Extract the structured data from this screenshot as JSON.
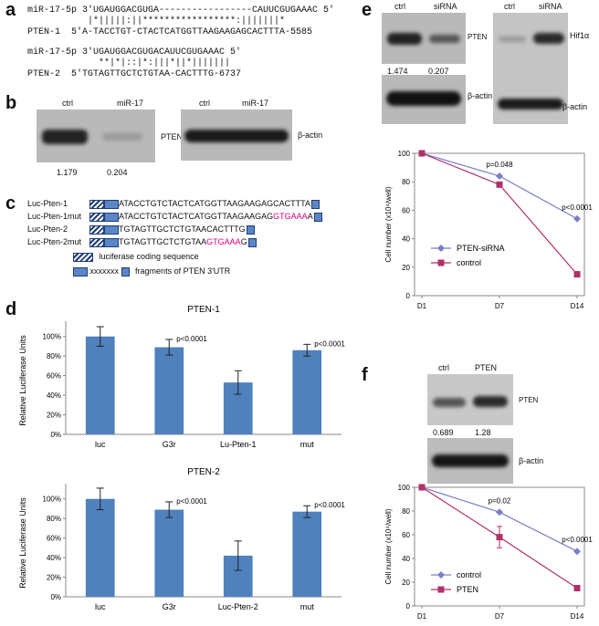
{
  "panels": {
    "a": "a",
    "b": "b",
    "c": "c",
    "d": "d",
    "e": "e",
    "f": "f"
  },
  "panel_a": {
    "lines": [
      "miR-17-5p 3'UGAUGGACGUGA-----------------CAUUCGUGAAAC 5'",
      "           |*|||||:||*****************:|||||||*",
      "PTEN-1  5'A-TACCTGT-CTACTCATGGTTAAGAAGAGCACTTTA-5585",
      "",
      "miR-17-5p 3'UGAUGGACGUGACAUUCGUGAAAC 5'",
      "             **|*|::|*:|||*||*|||||||",
      "PTEN-2  5'TGTAGTTGCTCTGTAA-CACTTTG-6737"
    ]
  },
  "panel_b": {
    "left_labels": [
      "ctrl",
      "miR-17"
    ],
    "protein": "PTEN",
    "right_labels": [
      "ctrl",
      "miR-17"
    ],
    "control": "β-actin",
    "quant": [
      "1.179",
      "0.204"
    ]
  },
  "panel_c": {
    "constructs": [
      {
        "name": "Luc-Pten-1",
        "seq": "ATACCTGTCTACTCATGGTTAAGAAGAGCACTTTA",
        "mut": "",
        "tail": ""
      },
      {
        "name": "Luc-Pten-1mut",
        "seq": "ATACCTGTCTACTCATGGTTAAGAAGAG",
        "mut": "GTGAAA",
        "tail": "A"
      },
      {
        "name": "Luc-Pten-2",
        "seq": "TGTAGTTGCTCTGTAACACTTTG",
        "mut": "",
        "tail": ""
      },
      {
        "name": "Luc-Pten-2mut",
        "seq": "TGTAGTTGCTCTGTAA",
        "mut": "GTGAAA",
        "tail": "G"
      }
    ],
    "legend": [
      {
        "marker": "",
        "label": "luciferase coding sequence"
      },
      {
        "marker": "xxxxxxx",
        "label": "fragments of PTEN 3'UTR"
      }
    ]
  },
  "panel_d": {
    "ylabel": "Relative Luciferase Units",
    "yticks": [
      "0%",
      "20%",
      "40%",
      "60%",
      "80%",
      "100%"
    ],
    "charts": [
      {
        "title": "PTEN-1",
        "categories": [
          "luc",
          "G3r",
          "Lu-Pten-1",
          "mut"
        ],
        "values": [
          100,
          89,
          53,
          86
        ],
        "errors": [
          10,
          8,
          12,
          6
        ],
        "annotations": [
          "",
          "p<0.0001",
          "",
          "p<0.0001"
        ]
      },
      {
        "title": "PTEN-2",
        "categories": [
          "luc",
          "G3r",
          "Luc-Pten-2",
          "mut"
        ],
        "values": [
          100,
          89,
          42,
          87
        ],
        "errors": [
          11,
          8,
          15,
          6
        ],
        "annotations": [
          "",
          "p<0.0001",
          "",
          "p<0.0001"
        ]
      }
    ]
  },
  "panel_e": {
    "blot_left": {
      "lanes": [
        "ctrl",
        "siRNA"
      ],
      "protein": "PTEN",
      "quant": [
        "1.474",
        "0.207"
      ],
      "control": "β-actin"
    },
    "blot_right": {
      "lanes": [
        "ctrl",
        "siRNA"
      ],
      "protein": "Hif1α",
      "control": "β-actin"
    }
  },
  "panel_f": {
    "blot": {
      "lanes": [
        "ctrl",
        "PTEN"
      ],
      "protein": "PTEN",
      "quant": [
        "0.689",
        "1.28"
      ],
      "control": "β-actin"
    }
  },
  "chart_data": [
    {
      "type": "bar",
      "title": "PTEN-1",
      "categories": [
        "luc",
        "G3r",
        "Lu-Pten-1",
        "mut"
      ],
      "values": [
        100,
        89,
        53,
        86
      ],
      "errors": [
        10,
        8,
        12,
        6
      ],
      "ylabel": "Relative Luciferase Units",
      "ylim": [
        0,
        110
      ],
      "annotations": [
        "",
        "p<0.0001",
        "",
        "p<0.0001"
      ]
    },
    {
      "type": "bar",
      "title": "PTEN-2",
      "categories": [
        "luc",
        "G3r",
        "Luc-Pten-2",
        "mut"
      ],
      "values": [
        100,
        89,
        42,
        87
      ],
      "errors": [
        11,
        8,
        15,
        6
      ],
      "ylabel": "Relative Luciferase Units",
      "ylim": [
        0,
        110
      ],
      "annotations": [
        "",
        "p<0.0001",
        "",
        "p<0.0001"
      ]
    },
    {
      "type": "line",
      "x": [
        "D1",
        "D7",
        "D14"
      ],
      "ylabel": "Cell number (x10⁴/well)",
      "ylim": [
        0,
        100
      ],
      "yticks": [
        0,
        20,
        40,
        60,
        80,
        100
      ],
      "series": [
        {
          "name": "PTEN-siRNA",
          "values": [
            100,
            84,
            54
          ],
          "color": "#7b7fc4",
          "marker": "diamond"
        },
        {
          "name": "control",
          "values": [
            100,
            78,
            15
          ],
          "color": "#b0306a",
          "marker": "square"
        }
      ],
      "annotations": [
        {
          "at": "D7",
          "text": "p=0.048"
        },
        {
          "at": "D14",
          "text": "p<0.0001"
        }
      ]
    },
    {
      "type": "line",
      "x": [
        "D1",
        "D7",
        "D14"
      ],
      "ylabel": "Cell number (x10⁴/well)",
      "ylim": [
        0,
        100
      ],
      "yticks": [
        0,
        20,
        40,
        60,
        80,
        100
      ],
      "series": [
        {
          "name": "control",
          "values": [
            100,
            79,
            46
          ],
          "color": "#7b7fc4",
          "marker": "diamond"
        },
        {
          "name": "PTEN",
          "values": [
            100,
            58,
            15
          ],
          "color": "#b0306a",
          "marker": "square",
          "errors": [
            0,
            9,
            0
          ]
        }
      ],
      "annotations": [
        {
          "at": "D7",
          "text": "p=0.02"
        },
        {
          "at": "D14",
          "text": "p<0.0001"
        }
      ]
    }
  ],
  "colors": {
    "bar": "#4f81bd",
    "siRNA_line": "#7b7fc4",
    "ctrl_line": "#b0306a",
    "mut_text": "#d6007f"
  }
}
